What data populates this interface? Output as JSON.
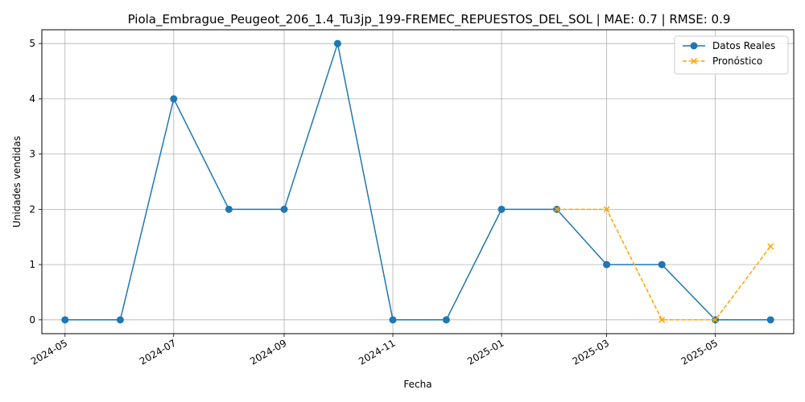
{
  "chart_data": {
    "type": "line",
    "title": "Piola_Embrague_Peugeot_206_1.4_Tu3jp_199-FREMEC_REPUESTOS_DEL_SOL | MAE: 0.7 | RMSE: 0.9",
    "xlabel": "Fecha",
    "ylabel": "Unidades vendidas",
    "x_ticks": [
      "2024-05",
      "2024-07",
      "2024-09",
      "2024-11",
      "2025-01",
      "2025-03",
      "2025-05"
    ],
    "y_ticks": [
      0,
      1,
      2,
      3,
      4,
      5
    ],
    "xlim": [
      "2024-04-18",
      "2025-06-14"
    ],
    "ylim": [
      -0.25,
      5.25
    ],
    "grid": true,
    "legend_position": "top-right",
    "series": [
      {
        "name": "Datos Reales",
        "color": "#1f77b4",
        "style": "solid",
        "marker": "circle",
        "points": [
          {
            "x": "2024-05-01",
            "y": 0
          },
          {
            "x": "2024-06-01",
            "y": 0
          },
          {
            "x": "2024-07-01",
            "y": 4
          },
          {
            "x": "2024-08-01",
            "y": 2
          },
          {
            "x": "2024-09-01",
            "y": 2
          },
          {
            "x": "2024-10-01",
            "y": 5
          },
          {
            "x": "2024-11-01",
            "y": 0
          },
          {
            "x": "2024-12-01",
            "y": 0
          },
          {
            "x": "2025-01-01",
            "y": 2
          },
          {
            "x": "2025-02-01",
            "y": 2
          },
          {
            "x": "2025-03-01",
            "y": 1
          },
          {
            "x": "2025-04-01",
            "y": 1
          },
          {
            "x": "2025-05-01",
            "y": 0
          },
          {
            "x": "2025-06-01",
            "y": 0
          }
        ]
      },
      {
        "name": "Pronóstico",
        "color": "#ffa500",
        "style": "dashed",
        "marker": "x",
        "points": [
          {
            "x": "2025-02-01",
            "y": 2
          },
          {
            "x": "2025-03-01",
            "y": 2
          },
          {
            "x": "2025-04-01",
            "y": 0
          },
          {
            "x": "2025-05-01",
            "y": 0
          },
          {
            "x": "2025-06-01",
            "y": 1.33
          }
        ]
      }
    ]
  }
}
